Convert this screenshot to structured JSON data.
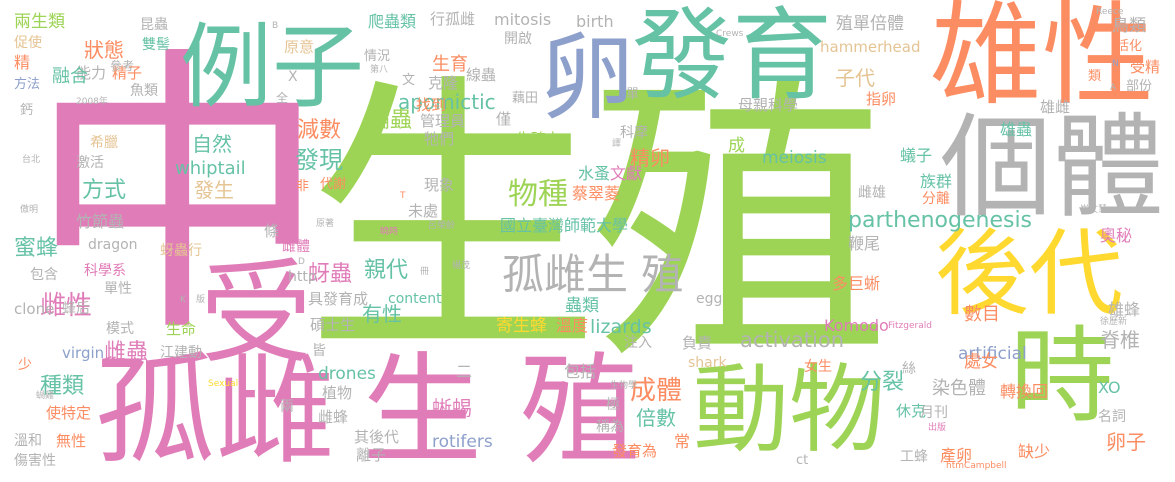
{
  "colors": {
    "pink": "#e07cb8",
    "green": "#9ed456",
    "teal": "#66c2a5",
    "orange": "#fc8d62",
    "gray": "#b3b3b3",
    "blue": "#8da0cb",
    "yellow": "#ffd92f",
    "tan": "#e5c494"
  },
  "words": {
    "zhong": "中",
    "sheng_big": "生",
    "zhi_big": "殖",
    "gu_ci_a": "孤雌",
    "sheng_zhi_a": "生 殖",
    "shou": "受",
    "fa_yu": "發育",
    "li_zi": "例子",
    "luan": "卵",
    "xiong_xing": "雄性",
    "ge_ti": "個體",
    "hou_dai": "後代",
    "dong_wu": "動物",
    "shi": "時",
    "gu_ci_sheng_zhi_b": "孤雌生 殖",
    "parthenogenesis": "parthenogenesis",
    "apomictic": "apomictic",
    "activation": "activation",
    "lizards": "lizards",
    "wu_zhong": "物種",
    "ci_xing": "雌性",
    "mi_feng": "蜜蜂",
    "ya_chong": "蚜蟲",
    "cheng_ti": "成體",
    "fen_lie": "分裂",
    "luan_zi": "卵子",
    "ji_zhui": "脊椎",
    "zhuang_tai": "狀態",
    "fa_xian": "發現",
    "jian_shu": "減數",
    "lun_chong": "輪蟲",
    "fang_shi": "方式",
    "zi_ran": "自然",
    "fa_sheng": "發生",
    "whiptail": "whiptail",
    "zhong_lei": "種類",
    "ci_chong": "雌蟲",
    "xi_yi_mo": "蜥蜴",
    "ci_feng": "雌蜂",
    "bei_shu": "倍數",
    "qin_dai": "親代",
    "you_xing": "有性",
    "drones": "drones",
    "rotifers": "rotifers",
    "mitosis": "mitosis",
    "birth": "birth",
    "meiosis": "meiosis",
    "komodo": "Komodo",
    "artificial": "artificial",
    "hammerhead": "hammerhead",
    "zhi_dan_bei_ti": "殖單倍體",
    "niao_lei": "鳥類",
    "zi_dai": "子代",
    "sheng_yu": "生育",
    "jing_luan": "精卵",
    "shui_zao": "水蚤",
    "wen_xian": "文獻",
    "guo_li_tai_wan": "國立臺灣師範大學",
    "chong_lei": "蟲類",
    "ji_sheng_feng": "寄生蜂",
    "wen_du": "溫度",
    "xiong_chong": "雄蟲",
    "zu_qun": "族群",
    "fen_li": "分離",
    "yi_zi": "蟻子",
    "ci_xiong": "雌雄",
    "bian_wei": "鞭尾",
    "duo_ju_xi": "多巨蜥",
    "shu_mu": "數目",
    "ran_se_ti": "染色體",
    "chu_nv": "處女",
    "xiong_feng": "雄蜂",
    "zhuan_huan_hui": "轉換回",
    "xo": "XO",
    "jue_shao": "缺少",
    "chan_luan": "產卵",
    "gong_feng": "工蜂",
    "xiu_ke": "休克",
    "ming_ci": "名詞",
    "ao_mi": "奧秘",
    "rong_he": "融合",
    "jing": "精",
    "neng_li": "能力",
    "jing_zi": "精子",
    "liang_sheng_lei": "兩生類",
    "cu_shi": "促使",
    "kun_chong": "昆蟲",
    "shuang_ji": "雙髻",
    "fang_fa": "方法",
    "yu_lei": "魚類",
    "can_kao": "參考",
    "gai": "鈣",
    "xi_la": "希臘",
    "ji_huo": "激活",
    "zhu_jie_chong": "竹節蟲",
    "dragon": "dragon",
    "ya_chong_xing": "蚜蟲行",
    "bao_han": "包含",
    "ke_xue_xi": "科學系",
    "dan_xing": "單性",
    "clone": "clone",
    "feng_hou": "蜂后",
    "mo_shi": "模式",
    "sheng_ming": "生命",
    "jiang_jian_dong": "江建動",
    "virgin": "virgin",
    "shao": "少",
    "wen_he": "溫和",
    "wu_xing": "無性",
    "shang_hai_xing": "傷害性",
    "shi_te_ding": "使特定",
    "pa_chong_lei": "爬蟲類",
    "xing_gu_ci": "行孤雌",
    "kai_qi": "開啟",
    "yuan_yi": "原意",
    "qing_kuang": "情況",
    "ke_long": "克隆",
    "xian_chong": "線蟲",
    "zhao_dao": "找到",
    "guan_li_yuan": "管理員",
    "jin": "僅",
    "ta_men": "牠們",
    "sheng_zhi_li": "生殖力",
    "ke_mo": "科摩",
    "cheng": "成",
    "dai_xie": "代謝",
    "xian_xiang": "現象",
    "wei_chu": "未處",
    "tiao": "條",
    "ci_ti": "雌體",
    "cai_cui_ling": "蔡翠菱",
    "http": "http",
    "ju_fa_yu_cheng": "具發育成",
    "content": "content",
    "shuo_shi_sheng": "碩士生",
    "fu_ze": "負責",
    "egg": "egg",
    "zhu_ru": "注入",
    "shark": "shark",
    "jie": "皆",
    "zhi_wu": "植物",
    "er": "二",
    "bao_kuo": "包括",
    "ci_feng_b": "雌蜂",
    "qi_hou_dai": "其後代",
    "li_zi_b": "離子",
    "fa_yu_wei": "發育為",
    "chang": "常",
    "ji": "極",
    "cheng_wei": "稱為",
    "liang": "兩",
    "nv_sheng": "女生",
    "si": "絲",
    "yue_kan": "月刊",
    "xiong_zhi": "雄雌",
    "mu_qin_ke_xue": "母親科學",
    "zhi_luan": "指卵",
    "sheng_wu_xue": "生物學",
    "huo_hua": "活化",
    "shou_jing": "受精",
    "bu_fen": "部份",
    "lai": "類",
    "ou_tian": "藕田",
    "dan": "單",
    "wen": "文",
    "quan": "全",
    "fei": "非",
    "x": "X",
    "ct": "ct",
    "wo_ji": "蝸雞",
    "lu_rong_ling": "呂榮齡",
    "y2008": "2008年",
    "ti_bei": "台北",
    "ao_ming": "傲明",
    "yuan_zhe": "原著",
    "ce": "冊",
    "ban": "版",
    "sexual": "Sexual",
    "crews": "Crews",
    "reece": "Reece",
    "fitzgerald": "Fitzgerald",
    "htm_campbell": "htmCampbell",
    "xu_li_xin": "徐歷新",
    "cui_wen_hui": "崔文慧",
    "chu_ban": "出版",
    "di_ba": "第八",
    "yi": "譯",
    "xiao_shi": "曉時",
    "guo_mai": "國麥",
    "zhong_guo": "鍾錫聰",
    "qu": "曲",
    "ying_mao": "楊茂",
    "k": "K",
    "d": "D",
    "b": "B",
    "t": "T",
    "n": "N",
    "a": "A",
    "ning": "擰",
    "dui": "對"
  }
}
